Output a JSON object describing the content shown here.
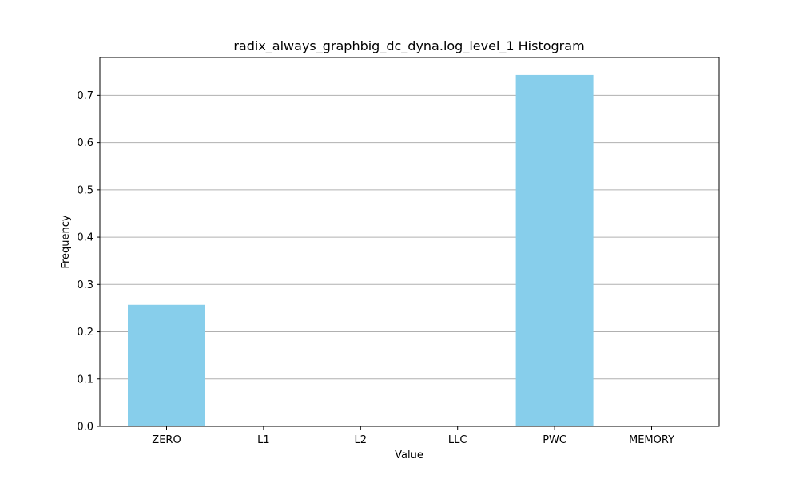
{
  "chart_data": {
    "type": "bar",
    "title": "radix_always_graphbig_dc_dyna.log_level_1 Histogram",
    "xlabel": "Value",
    "ylabel": "Frequency",
    "categories": [
      "ZERO",
      "L1",
      "L2",
      "LLC",
      "PWC",
      "MEMORY"
    ],
    "values": [
      0.257,
      0.0,
      0.0,
      0.0,
      0.743,
      0.0
    ],
    "ylim": [
      0,
      0.78
    ],
    "yticks": [
      0.0,
      0.1,
      0.2,
      0.3,
      0.4,
      0.5,
      0.6,
      0.7
    ],
    "ytick_labels": [
      "0.0",
      "0.1",
      "0.2",
      "0.3",
      "0.4",
      "0.5",
      "0.6",
      "0.7"
    ],
    "grid": "y-axis horizontal",
    "legend": "none",
    "colors": {
      "bar": "#87ceeb",
      "grid": "#b0b0b0",
      "axis": "#000000"
    }
  }
}
